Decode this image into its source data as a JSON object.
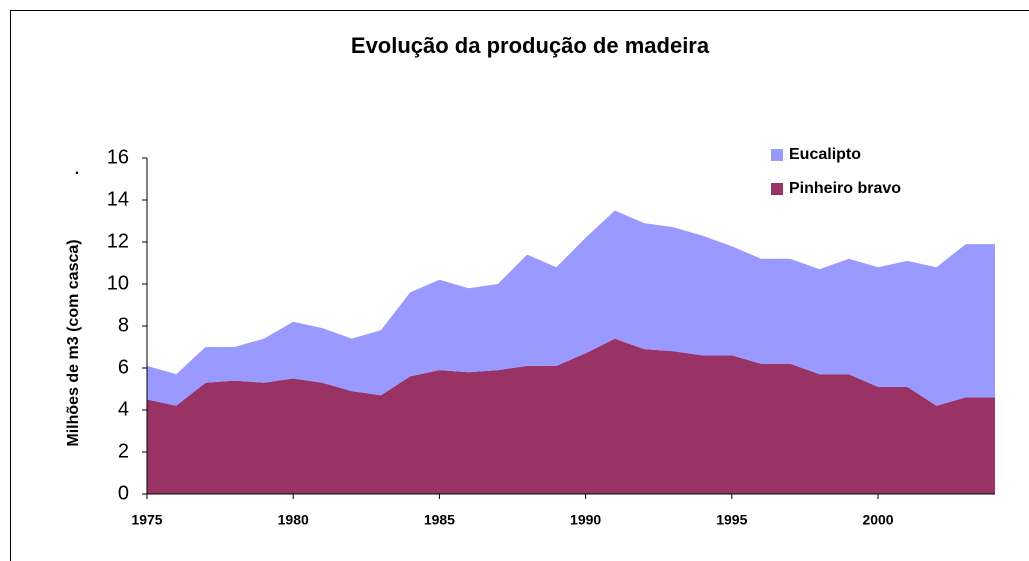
{
  "chart_data": {
    "type": "stacked-area",
    "title": "Evolução da produção de madeira",
    "y_label": "Milhões de m3 (com casca)",
    "annotation": ".",
    "x": [
      1975,
      1976,
      1977,
      1978,
      1979,
      1980,
      1981,
      1982,
      1983,
      1984,
      1985,
      1986,
      1987,
      1988,
      1989,
      1990,
      1991,
      1992,
      1993,
      1994,
      1995,
      1996,
      1997,
      1998,
      1999,
      2000,
      2001,
      2002,
      2003,
      2004
    ],
    "series": [
      {
        "name": "Pinheiro bravo",
        "color": "#993366",
        "values": [
          4.5,
          4.2,
          5.3,
          5.4,
          5.3,
          5.5,
          5.3,
          4.9,
          4.7,
          5.6,
          5.9,
          5.8,
          5.9,
          6.1,
          6.1,
          6.7,
          7.4,
          6.9,
          6.8,
          6.6,
          6.6,
          6.2,
          6.2,
          5.7,
          5.7,
          5.1,
          5.1,
          4.2,
          4.6,
          4.6
        ]
      },
      {
        "name": "Eucalipto",
        "color": "#9999ff",
        "values": [
          1.6,
          1.5,
          1.7,
          1.6,
          2.1,
          2.7,
          2.6,
          2.5,
          3.1,
          4.0,
          4.3,
          4.0,
          4.1,
          5.3,
          4.7,
          5.5,
          6.1,
          6.0,
          5.9,
          5.7,
          5.2,
          5.0,
          5.0,
          5.0,
          5.5,
          5.7,
          6.0,
          6.6,
          7.3,
          7.3
        ]
      }
    ],
    "xlim": [
      1975,
      2004
    ],
    "xticks": [
      1975,
      1980,
      1985,
      1990,
      1995,
      2000
    ],
    "ylim": [
      0,
      16
    ],
    "yticks": [
      0,
      2,
      4,
      6,
      8,
      10,
      12,
      14,
      16
    ],
    "legend": "top-right"
  }
}
